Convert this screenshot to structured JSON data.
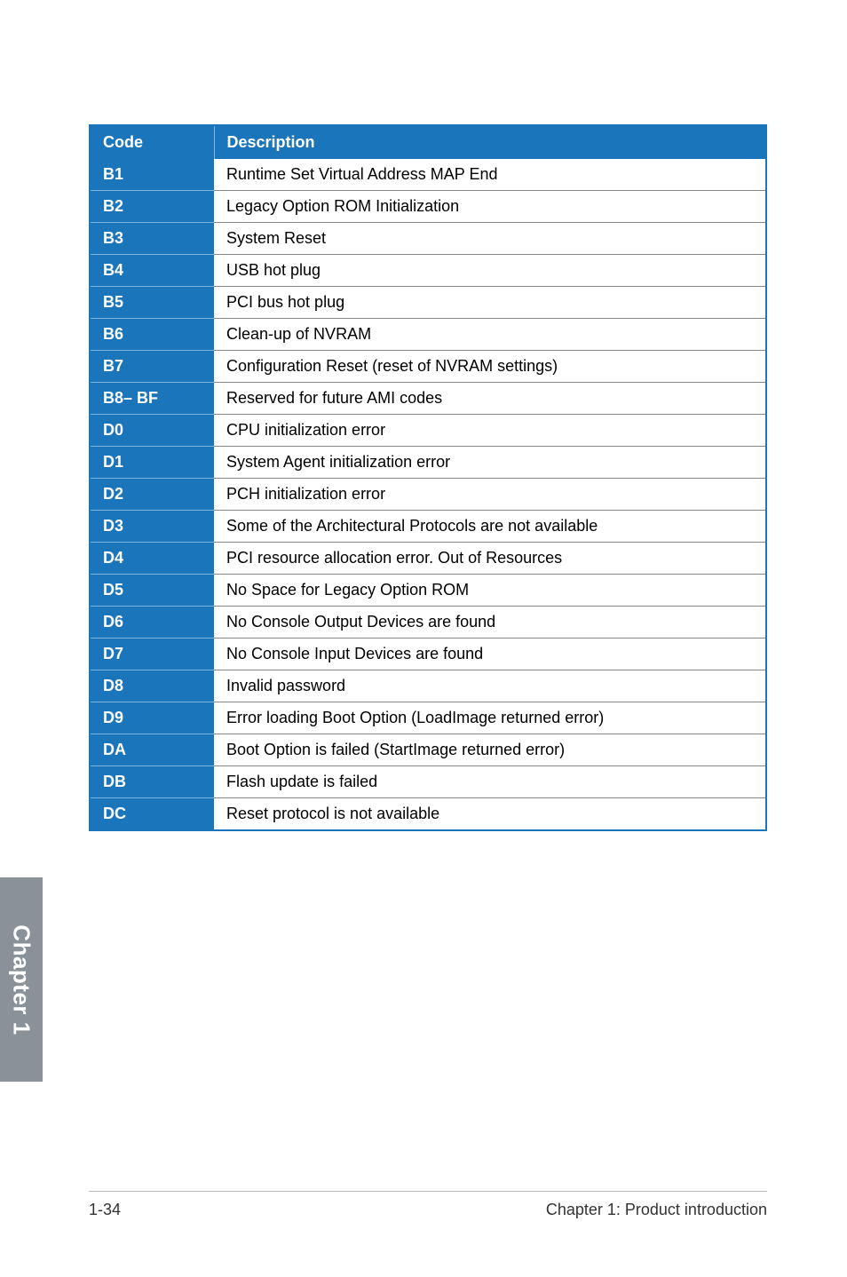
{
  "table": {
    "header": {
      "code": "Code",
      "description": "Description"
    },
    "rows": [
      {
        "code": "B1",
        "desc": "Runtime Set Virtual Address MAP End"
      },
      {
        "code": "B2",
        "desc": "Legacy Option ROM Initialization"
      },
      {
        "code": "B3",
        "desc": "System Reset"
      },
      {
        "code": "B4",
        "desc": "USB hot plug"
      },
      {
        "code": "B5",
        "desc": "PCI bus hot plug"
      },
      {
        "code": "B6",
        "desc": "Clean-up of NVRAM"
      },
      {
        "code": "B7",
        "desc": "Configuration Reset (reset of NVRAM settings)"
      },
      {
        "code": "B8– BF",
        "desc": "Reserved for future AMI codes"
      },
      {
        "code": "D0",
        "desc": "CPU initialization error"
      },
      {
        "code": "D1",
        "desc": "System Agent initialization error"
      },
      {
        "code": "D2",
        "desc": "PCH initialization error"
      },
      {
        "code": "D3",
        "desc": "Some of the Architectural Protocols are not available"
      },
      {
        "code": "D4",
        "desc": "PCI resource allocation error.  Out of Resources"
      },
      {
        "code": "D5",
        "desc": "No Space for Legacy Option ROM"
      },
      {
        "code": "D6",
        "desc": "No Console Output Devices are found"
      },
      {
        "code": "D7",
        "desc": "No Console Input Devices are found"
      },
      {
        "code": "D8",
        "desc": "Invalid password"
      },
      {
        "code": "D9",
        "desc": "Error loading Boot Option (LoadImage returned error)"
      },
      {
        "code": "DA",
        "desc": "Boot Option is failed (StartImage returned error)"
      },
      {
        "code": "DB",
        "desc": "Flash update is failed"
      },
      {
        "code": "DC",
        "desc": "Reset protocol is not available"
      }
    ]
  },
  "chapter_tab": "Chapter 1",
  "footer": {
    "page_number": "1-34",
    "chapter_title": "Chapter 1: Product introduction"
  },
  "colors": {
    "header_bg": "#1b75bb",
    "header_fg": "#ffffff",
    "tab_bg": "#8a9199",
    "row_divider": "#888888"
  }
}
